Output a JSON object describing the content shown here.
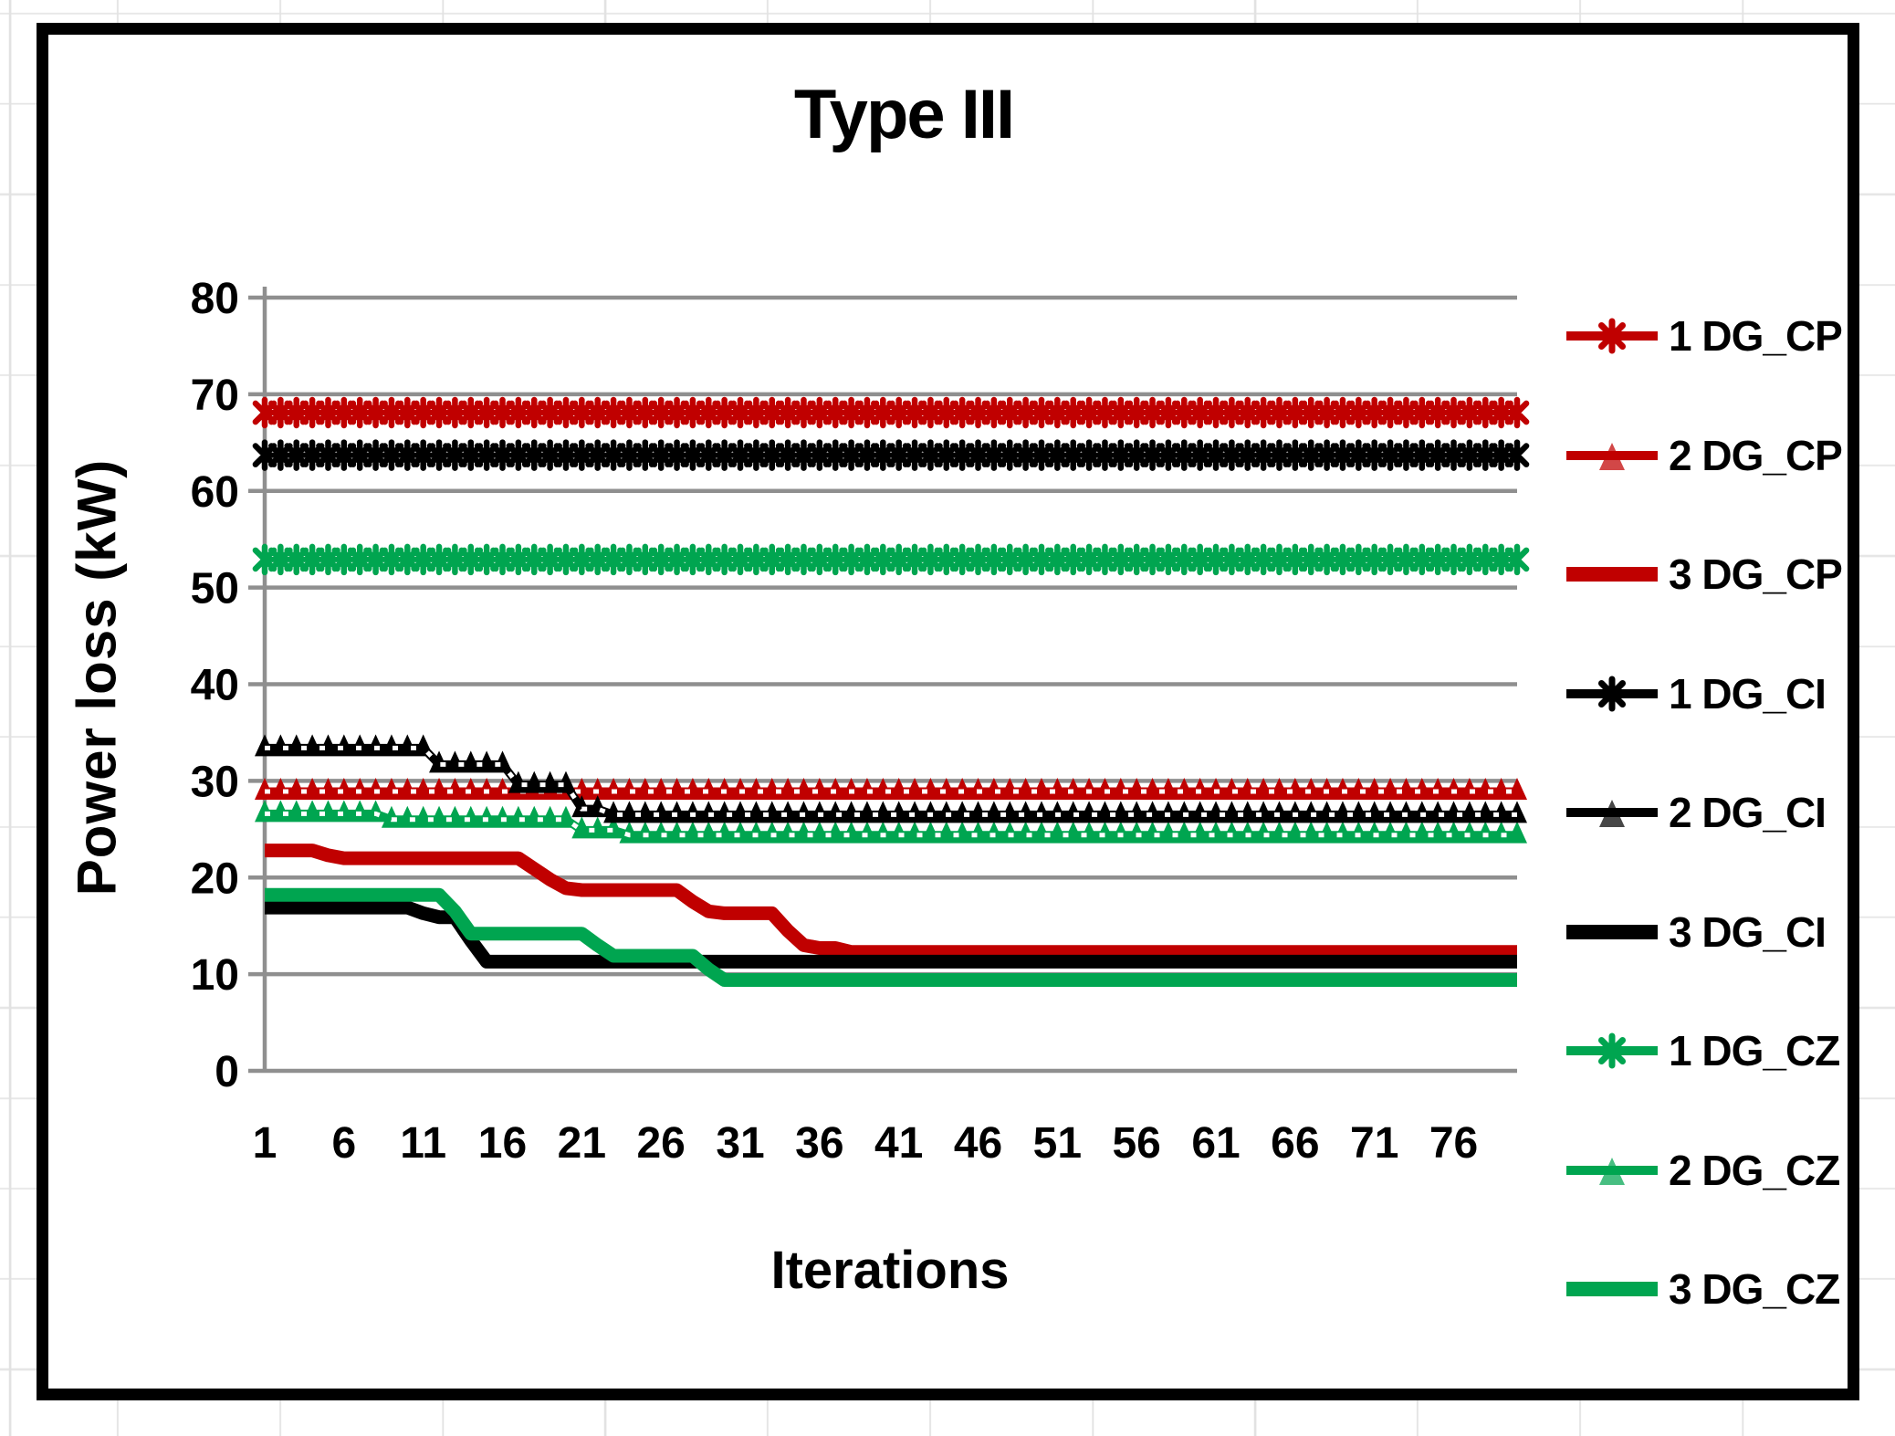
{
  "chart_data": {
    "type": "line",
    "title": "Type III",
    "xlabel": "Iterations",
    "ylabel": "Power loss (kW)",
    "x_ticks": [
      1,
      6,
      11,
      16,
      21,
      26,
      31,
      36,
      41,
      46,
      51,
      56,
      61,
      66,
      71,
      76
    ],
    "y_ticks": [
      0,
      10,
      20,
      30,
      40,
      50,
      60,
      70,
      80
    ],
    "x_range": [
      1,
      80
    ],
    "ylim": [
      0,
      80
    ],
    "iterations_count": 80,
    "grid": "horizontal",
    "legend_position": "right",
    "colors": {
      "CP": "#c00000",
      "CI": "#000000",
      "CZ": "#00a550",
      "grid": "#8f8f8f"
    },
    "series": [
      {
        "name": "1 DG_CP",
        "group": "CP",
        "color": "#c00000",
        "marker": "star",
        "final_value": 68.1,
        "segments": [
          [
            1,
            80,
            68.1
          ]
        ]
      },
      {
        "name": "2 DG_CP",
        "group": "CP",
        "color": "#c00000",
        "marker": "triangle",
        "final_value": 28.9,
        "segments": [
          [
            1,
            80,
            28.9
          ]
        ]
      },
      {
        "name": "3 DG_CP",
        "group": "CP",
        "color": "#c00000",
        "marker": "none",
        "final_value": 12.3,
        "segments": [
          [
            1,
            4,
            22.8
          ],
          [
            5,
            5,
            22.3
          ],
          [
            6,
            17,
            22.0
          ],
          [
            18,
            18,
            20.9
          ],
          [
            19,
            19,
            19.8
          ],
          [
            20,
            20,
            18.9
          ],
          [
            21,
            27,
            18.7
          ],
          [
            28,
            28,
            17.5
          ],
          [
            29,
            29,
            16.5
          ],
          [
            30,
            33,
            16.3
          ],
          [
            34,
            34,
            14.5
          ],
          [
            35,
            35,
            13.0
          ],
          [
            36,
            37,
            12.7
          ],
          [
            38,
            80,
            12.3
          ]
        ]
      },
      {
        "name": "1 DG_CI",
        "group": "CI",
        "color": "#000000",
        "marker": "star",
        "final_value": 63.7,
        "segments": [
          [
            1,
            80,
            63.7
          ]
        ]
      },
      {
        "name": "2 DG_CI",
        "group": "CI",
        "color": "#000000",
        "marker": "triangle",
        "final_value": 26.5,
        "segments": [
          [
            1,
            11,
            33.4
          ],
          [
            12,
            16,
            31.7
          ],
          [
            17,
            20,
            29.6
          ],
          [
            21,
            22,
            27.1
          ],
          [
            23,
            80,
            26.5
          ]
        ]
      },
      {
        "name": "3 DG_CI",
        "group": "CI",
        "color": "#000000",
        "marker": "none",
        "final_value": 11.3,
        "segments": [
          [
            1,
            10,
            16.9
          ],
          [
            11,
            11,
            16.3
          ],
          [
            12,
            13,
            15.9
          ],
          [
            14,
            14,
            13.5
          ],
          [
            15,
            80,
            11.3
          ]
        ]
      },
      {
        "name": "1 DG_CZ",
        "group": "CZ",
        "color": "#00a550",
        "marker": "star",
        "final_value": 52.9,
        "segments": [
          [
            1,
            80,
            52.9
          ]
        ]
      },
      {
        "name": "2 DG_CZ",
        "group": "CZ",
        "color": "#00a550",
        "marker": "triangle",
        "final_value": 24.4,
        "segments": [
          [
            1,
            8,
            26.6
          ],
          [
            9,
            20,
            26.0
          ],
          [
            21,
            23,
            24.9
          ],
          [
            24,
            80,
            24.4
          ]
        ]
      },
      {
        "name": "3 DG_CZ",
        "group": "CZ",
        "color": "#00a550",
        "marker": "none",
        "final_value": 9.4,
        "segments": [
          [
            1,
            12,
            18.2
          ],
          [
            13,
            13,
            16.5
          ],
          [
            14,
            21,
            14.2
          ],
          [
            22,
            22,
            13.0
          ],
          [
            23,
            28,
            11.9
          ],
          [
            29,
            29,
            10.5
          ],
          [
            30,
            80,
            9.4
          ]
        ]
      }
    ]
  }
}
